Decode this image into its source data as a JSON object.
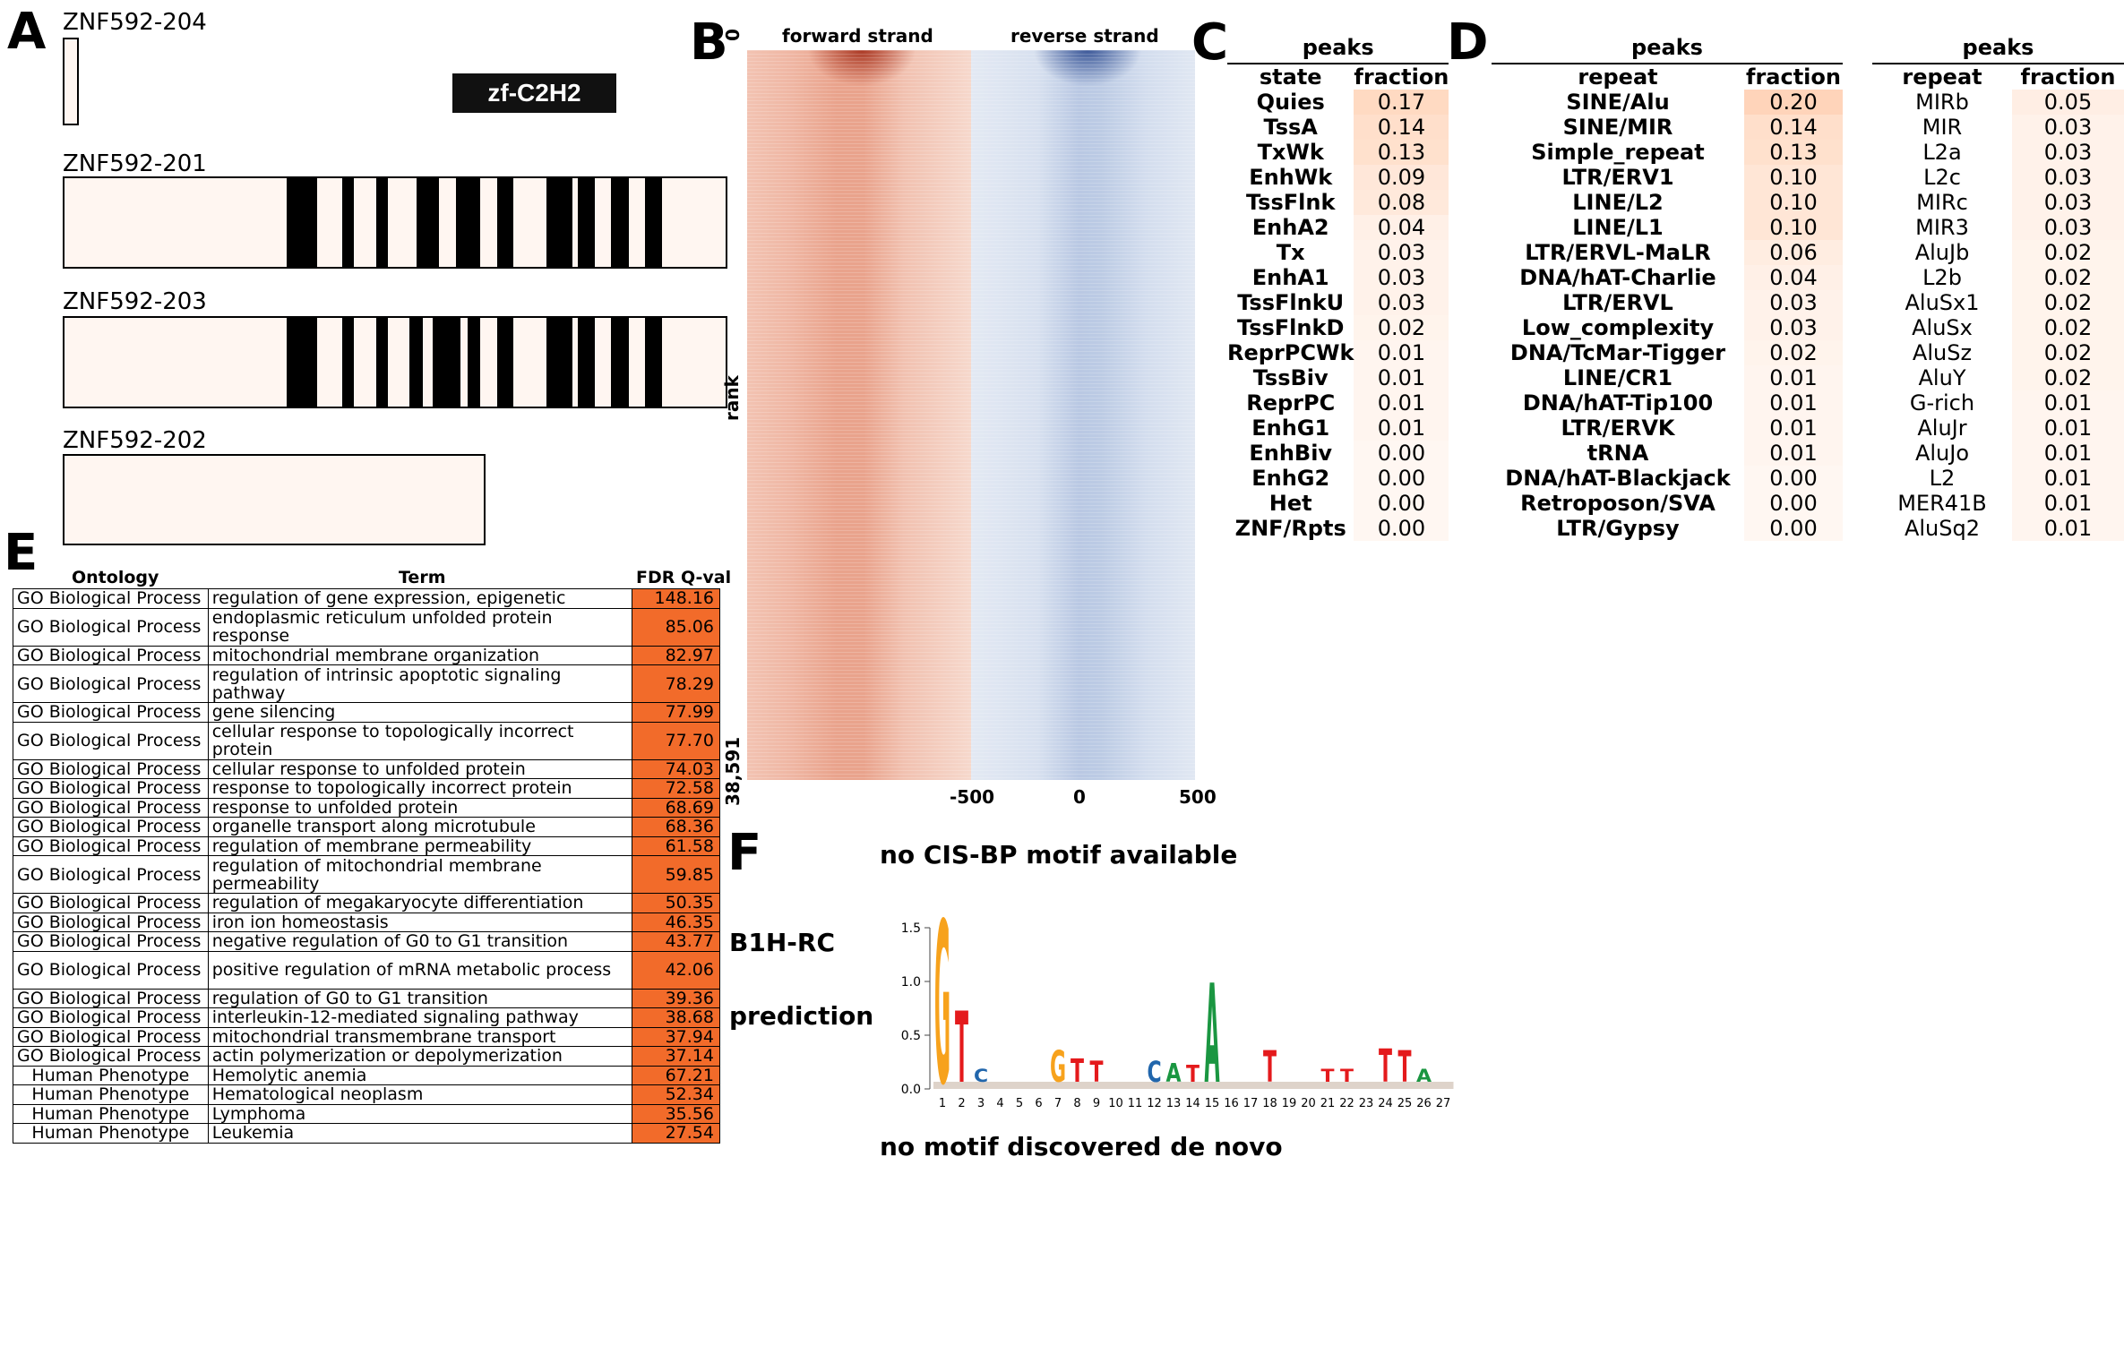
{
  "panel_letters": {
    "a": "A",
    "b": "B",
    "c": "C",
    "d": "D",
    "e": "E",
    "f": "F"
  },
  "panelA": {
    "domain_label": "zf-C2H2",
    "isoforms": [
      {
        "name": "ZNF592-204"
      },
      {
        "name": "ZNF592-201"
      },
      {
        "name": "ZNF592-203"
      },
      {
        "name": "ZNF592-202"
      }
    ]
  },
  "panelB": {
    "forward_label": "forward strand",
    "reverse_label": "reverse strand",
    "y_label": "rank",
    "y_top": "0",
    "y_bottom": "38,591",
    "x_ticks": [
      "-500",
      "0",
      "500"
    ],
    "forward_color": "#e8775c",
    "reverse_color": "#5b7fbf"
  },
  "panelC": {
    "header": "peaks",
    "col_state": "state",
    "col_fraction": "fraction",
    "rows": [
      {
        "label": "Quies",
        "value": "0.17",
        "f": 0.17
      },
      {
        "label": "TssA",
        "value": "0.14",
        "f": 0.14
      },
      {
        "label": "TxWk",
        "value": "0.13",
        "f": 0.13
      },
      {
        "label": "EnhWk",
        "value": "0.09",
        "f": 0.09
      },
      {
        "label": "TssFlnk",
        "value": "0.08",
        "f": 0.08
      },
      {
        "label": "EnhA2",
        "value": "0.04",
        "f": 0.04
      },
      {
        "label": "Tx",
        "value": "0.03",
        "f": 0.03
      },
      {
        "label": "EnhA1",
        "value": "0.03",
        "f": 0.03
      },
      {
        "label": "TssFlnkU",
        "value": "0.03",
        "f": 0.03
      },
      {
        "label": "TssFlnkD",
        "value": "0.02",
        "f": 0.02
      },
      {
        "label": "ReprPCWk",
        "value": "0.01",
        "f": 0.01
      },
      {
        "label": "TssBiv",
        "value": "0.01",
        "f": 0.01
      },
      {
        "label": "ReprPC",
        "value": "0.01",
        "f": 0.01
      },
      {
        "label": "EnhG1",
        "value": "0.01",
        "f": 0.01
      },
      {
        "label": "EnhBiv",
        "value": "0.00",
        "f": 0.0
      },
      {
        "label": "EnhG2",
        "value": "0.00",
        "f": 0.0
      },
      {
        "label": "Het",
        "value": "0.00",
        "f": 0.0
      },
      {
        "label": "ZNF/Rpts",
        "value": "0.00",
        "f": 0.0
      }
    ]
  },
  "panelD": {
    "header1": "peaks",
    "header2": "peaks",
    "col_repeat": "repeat",
    "col_fraction": "fraction",
    "left": [
      {
        "label": "SINE/Alu",
        "value": "0.20",
        "f": 0.2
      },
      {
        "label": "SINE/MIR",
        "value": "0.14",
        "f": 0.14
      },
      {
        "label": "Simple_repeat",
        "value": "0.13",
        "f": 0.13
      },
      {
        "label": "LTR/ERV1",
        "value": "0.10",
        "f": 0.1
      },
      {
        "label": "LINE/L2",
        "value": "0.10",
        "f": 0.1
      },
      {
        "label": "LINE/L1",
        "value": "0.10",
        "f": 0.1
      },
      {
        "label": "LTR/ERVL-MaLR",
        "value": "0.06",
        "f": 0.06
      },
      {
        "label": "DNA/hAT-Charlie",
        "value": "0.04",
        "f": 0.04
      },
      {
        "label": "LTR/ERVL",
        "value": "0.03",
        "f": 0.03
      },
      {
        "label": "Low_complexity",
        "value": "0.03",
        "f": 0.03
      },
      {
        "label": "DNA/TcMar-Tigger",
        "value": "0.02",
        "f": 0.02
      },
      {
        "label": "LINE/CR1",
        "value": "0.01",
        "f": 0.01
      },
      {
        "label": "DNA/hAT-Tip100",
        "value": "0.01",
        "f": 0.01
      },
      {
        "label": "LTR/ERVK",
        "value": "0.01",
        "f": 0.01
      },
      {
        "label": "tRNA",
        "value": "0.01",
        "f": 0.01
      },
      {
        "label": "DNA/hAT-Blackjack",
        "value": "0.00",
        "f": 0.0
      },
      {
        "label": "Retroposon/SVA",
        "value": "0.00",
        "f": 0.0
      },
      {
        "label": "LTR/Gypsy",
        "value": "0.00",
        "f": 0.0
      }
    ],
    "right": [
      {
        "label": "MIRb",
        "value": "0.05",
        "f": 0.05
      },
      {
        "label": "MIR",
        "value": "0.03",
        "f": 0.03
      },
      {
        "label": "L2a",
        "value": "0.03",
        "f": 0.03
      },
      {
        "label": "L2c",
        "value": "0.03",
        "f": 0.03
      },
      {
        "label": "MIRc",
        "value": "0.03",
        "f": 0.03
      },
      {
        "label": "MIR3",
        "value": "0.03",
        "f": 0.03
      },
      {
        "label": "AluJb",
        "value": "0.02",
        "f": 0.02
      },
      {
        "label": "L2b",
        "value": "0.02",
        "f": 0.02
      },
      {
        "label": "AluSx1",
        "value": "0.02",
        "f": 0.02
      },
      {
        "label": "AluSx",
        "value": "0.02",
        "f": 0.02
      },
      {
        "label": "AluSz",
        "value": "0.02",
        "f": 0.02
      },
      {
        "label": "AluY",
        "value": "0.02",
        "f": 0.02
      },
      {
        "label": "G-rich",
        "value": "0.01",
        "f": 0.01
      },
      {
        "label": "AluJr",
        "value": "0.01",
        "f": 0.01
      },
      {
        "label": "AluJo",
        "value": "0.01",
        "f": 0.01
      },
      {
        "label": "L2",
        "value": "0.01",
        "f": 0.01
      },
      {
        "label": "MER41B",
        "value": "0.01",
        "f": 0.01
      },
      {
        "label": "AluSq2",
        "value": "0.01",
        "f": 0.01
      }
    ]
  },
  "panelE": {
    "col_ontology": "Ontology",
    "col_term": "Term",
    "col_q": "FDR Q-val",
    "rows": [
      {
        "ontology": "GO Biological Process",
        "term": "regulation of gene expression, epigenetic",
        "q": "148.16"
      },
      {
        "ontology": "GO Biological Process",
        "term": "endoplasmic reticulum unfolded protein response",
        "q": "85.06"
      },
      {
        "ontology": "GO Biological Process",
        "term": "mitochondrial membrane organization",
        "q": "82.97"
      },
      {
        "ontology": "GO Biological Process",
        "term": "regulation of intrinsic apoptotic signaling pathway",
        "q": "78.29"
      },
      {
        "ontology": "GO Biological Process",
        "term": "gene silencing",
        "q": "77.99"
      },
      {
        "ontology": "GO Biological Process",
        "term": "cellular response to topologically incorrect protein",
        "q": "77.70"
      },
      {
        "ontology": "GO Biological Process",
        "term": "cellular response to unfolded protein",
        "q": "74.03"
      },
      {
        "ontology": "GO Biological Process",
        "term": "response to topologically incorrect protein",
        "q": "72.58"
      },
      {
        "ontology": "GO Biological Process",
        "term": "response to unfolded protein",
        "q": "68.69"
      },
      {
        "ontology": "GO Biological Process",
        "term": "organelle transport along microtubule",
        "q": "68.36"
      },
      {
        "ontology": "GO Biological Process",
        "term": "regulation of membrane permeability",
        "q": "61.58"
      },
      {
        "ontology": "GO Biological Process",
        "term": "regulation of mitochondrial membrane permeability",
        "q": "59.85"
      },
      {
        "ontology": "GO Biological Process",
        "term": "regulation of megakaryocyte differentiation",
        "q": "50.35"
      },
      {
        "ontology": "GO Biological Process",
        "term": "iron ion homeostasis",
        "q": "46.35"
      },
      {
        "ontology": "GO Biological Process",
        "term": "negative regulation of G0 to G1 transition",
        "q": "43.77"
      },
      {
        "ontology": "GO Biological Process",
        "term": "positive regulation of mRNA metabolic process",
        "q": "42.06"
      },
      {
        "ontology": "GO Biological Process",
        "term": "regulation of G0 to G1 transition",
        "q": "39.36"
      },
      {
        "ontology": "GO Biological Process",
        "term": "interleukin-12-mediated signaling pathway",
        "q": "38.68"
      },
      {
        "ontology": "GO Biological Process",
        "term": "mitochondrial transmembrane transport",
        "q": "37.94"
      },
      {
        "ontology": "GO Biological Process",
        "term": "actin polymerization or depolymerization",
        "q": "37.14"
      },
      {
        "ontology": "Human Phenotype",
        "term": "Hemolytic anemia",
        "q": "67.21"
      },
      {
        "ontology": "Human Phenotype",
        "term": "Hematological neoplasm",
        "q": "52.34"
      },
      {
        "ontology": "Human Phenotype",
        "term": "Lymphoma",
        "q": "35.56"
      },
      {
        "ontology": "Human Phenotype",
        "term": "Leukemia",
        "q": "27.54"
      }
    ]
  },
  "panelF": {
    "cisbp_text": "no CIS-BP motif available",
    "b1h_line1": "B1H-RC",
    "b1h_line2": "prediction",
    "denovo_text": "no motif discovered de novo",
    "y_ticks": [
      "1.5",
      "1.0",
      "0.5",
      "0.0"
    ],
    "x_positions": [
      "1",
      "2",
      "3",
      "4",
      "5",
      "6",
      "7",
      "8",
      "9",
      "10",
      "11",
      "12",
      "13",
      "14",
      "15",
      "16",
      "17",
      "18",
      "19",
      "20",
      "21",
      "22",
      "23",
      "24",
      "25",
      "26",
      "27"
    ],
    "logo_letters": [
      {
        "pos": 1,
        "letter": "G",
        "h": 1.55,
        "color": "#f7a21c"
      },
      {
        "pos": 2,
        "letter": "T",
        "h": 0.68,
        "color": "#e41a1c"
      },
      {
        "pos": 3,
        "letter": "C",
        "h": 0.12,
        "color": "#2166ac"
      },
      {
        "pos": 7,
        "letter": "G",
        "h": 0.3,
        "color": "#f7a21c"
      },
      {
        "pos": 8,
        "letter": "T",
        "h": 0.22,
        "color": "#e41a1c"
      },
      {
        "pos": 9,
        "letter": "T",
        "h": 0.2,
        "color": "#e41a1c"
      },
      {
        "pos": 12,
        "letter": "C",
        "h": 0.2,
        "color": "#2166ac"
      },
      {
        "pos": 13,
        "letter": "A",
        "h": 0.18,
        "color": "#1a9641"
      },
      {
        "pos": 14,
        "letter": "T",
        "h": 0.16,
        "color": "#e41a1c"
      },
      {
        "pos": 15,
        "letter": "A",
        "h": 0.95,
        "color": "#1a9641"
      },
      {
        "pos": 18,
        "letter": "T",
        "h": 0.3,
        "color": "#e41a1c"
      },
      {
        "pos": 21,
        "letter": "T",
        "h": 0.12,
        "color": "#e41a1c"
      },
      {
        "pos": 22,
        "letter": "T",
        "h": 0.12,
        "color": "#e41a1c"
      },
      {
        "pos": 24,
        "letter": "T",
        "h": 0.32,
        "color": "#e41a1c"
      },
      {
        "pos": 25,
        "letter": "T",
        "h": 0.3,
        "color": "#e41a1c"
      },
      {
        "pos": 26,
        "letter": "A",
        "h": 0.12,
        "color": "#1a9641"
      }
    ]
  }
}
